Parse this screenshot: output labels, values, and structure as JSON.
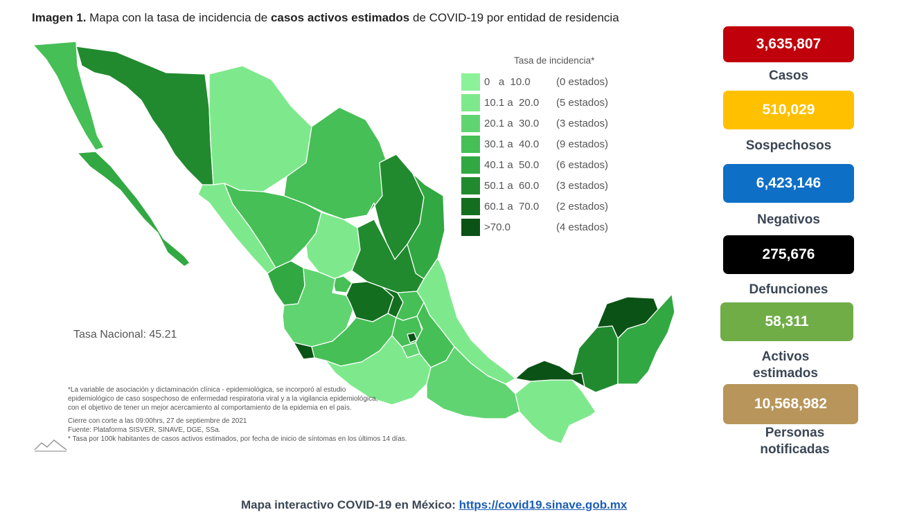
{
  "title": {
    "prefix": "Imagen 1.",
    "part1": " Mapa con la tasa de incidencia de ",
    "bold": "casos activos estimados",
    "part2": " de COVID-19 por entidad de residencia"
  },
  "legend": {
    "title": "Tasa de incidencia*",
    "items": [
      {
        "range": "0   a  10.0",
        "count": "(0 estados)",
        "color": "#8cf29a"
      },
      {
        "range": "10.1 a  20.0",
        "count": "(5 estados)",
        "color": "#7ee98c"
      },
      {
        "range": "20.1 a  30.0",
        "count": "(3 estados)",
        "color": "#61d472"
      },
      {
        "range": "30.1 a  40.0",
        "count": "(9 estados)",
        "color": "#46bf56"
      },
      {
        "range": "40.1 a  50.0",
        "count": "(6 estados)",
        "color": "#32a842"
      },
      {
        "range": "50.1 a  60.0",
        "count": "(3 estados)",
        "color": "#218a2f"
      },
      {
        "range": "60.1 a  70.0",
        "count": "(2 estados)",
        "color": "#136e20"
      },
      {
        "range": ">70.0",
        "count": "(4 estados)",
        "color": "#0a5215"
      }
    ]
  },
  "national_rate": "Tasa Nacional: 45.21",
  "footnotes": {
    "line1": "*La variable de asociación y dictaminación clínica - epidemiológica, se incorporó al estudio",
    "line2": "epidemiológico de caso sospechoso de enfermedad respiratoria viral y a la vigilancia epidemiológica,",
    "line3": "con el objetivo de tener un mejor acercamiento al comportamiento de la epidemia en el país.",
    "line4": "Cierre con corte a las 09:00hrs, 27 de septiembre de 2021",
    "line5": "Fuente: Plataforma SISVER, SINAVE, DGE, SSa.",
    "line6": "* Tasa por 100k habitantes de casos activos estimados, por fecha de inicio de síntomas en los últimos 14 días."
  },
  "stats": [
    {
      "value": "3,635,807",
      "label": "Casos",
      "color": "#c0000b"
    },
    {
      "value": "510,029",
      "label": "Sospechosos",
      "color": "#ffc000"
    },
    {
      "value": "6,423,146",
      "label": "Negativos",
      "color": "#0d6fc6"
    },
    {
      "value": "275,676",
      "label": "Defunciones",
      "color": "#000000"
    },
    {
      "value": "58,311",
      "label": "Activos estimados",
      "color": "#70ad47"
    },
    {
      "value": "10,568,982",
      "label": "Personas notificadas",
      "color": "#b8955a"
    }
  ],
  "footer": {
    "text": "Mapa interactivo COVID-19 en México: ",
    "link": "https://covid19.sinave.gob.mx"
  },
  "map_colors": {
    "l1": "#7ee98c",
    "l2": "#61d472",
    "l3": "#46bf56",
    "l4": "#32a842",
    "l5": "#218a2f",
    "l6": "#136e20",
    "l7": "#0a5215"
  }
}
